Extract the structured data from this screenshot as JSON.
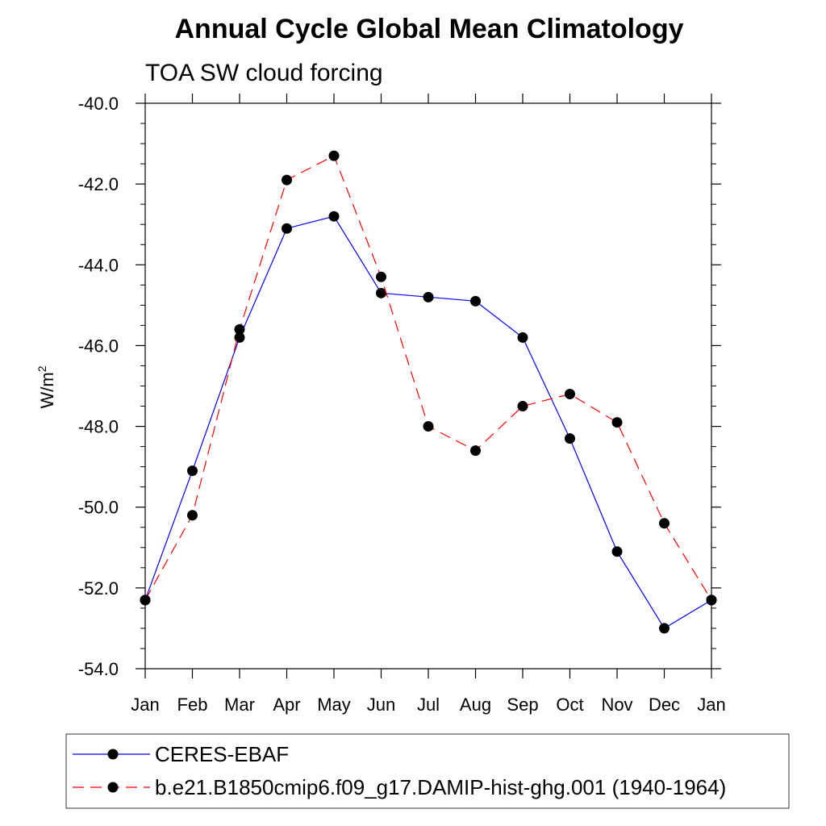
{
  "chart_data": {
    "type": "line",
    "title": "Annual Cycle Global Mean Climatology",
    "subtitle": "TOA SW cloud forcing",
    "xlabel": "",
    "ylabel": "W/m",
    "ylabel_superscript": "2",
    "categories": [
      "Jan",
      "Feb",
      "Mar",
      "Apr",
      "May",
      "Jun",
      "Jul",
      "Aug",
      "Sep",
      "Oct",
      "Nov",
      "Dec",
      "Jan"
    ],
    "ylim": [
      -54.0,
      -40.0
    ],
    "yticks": [
      -54.0,
      -52.0,
      -50.0,
      -48.0,
      -46.0,
      -44.0,
      -42.0,
      -40.0
    ],
    "ytick_labels": [
      "-54.0",
      "-52.0",
      "-50.0",
      "-48.0",
      "-46.0",
      "-44.0",
      "-42.0",
      "-40.0"
    ],
    "grid": false,
    "legend_position": "bottom",
    "series": [
      {
        "name": "CERES-EBAF",
        "color": "#0000ff",
        "dash": "solid",
        "values": [
          -52.3,
          -49.1,
          -45.8,
          -43.1,
          -42.8,
          -44.7,
          -44.8,
          -44.9,
          -45.8,
          -48.3,
          -51.1,
          -53.0,
          -52.3
        ]
      },
      {
        "name": "b.e21.B1850cmip6.f09_g17.DAMIP-hist-ghg.001 (1940-1964)",
        "color": "#ff0000",
        "dash": "dashed",
        "values": [
          -52.3,
          -50.2,
          -45.6,
          -41.9,
          -41.3,
          -44.3,
          -48.0,
          -48.6,
          -47.5,
          -47.2,
          -47.9,
          -50.4,
          -52.3
        ]
      }
    ]
  }
}
